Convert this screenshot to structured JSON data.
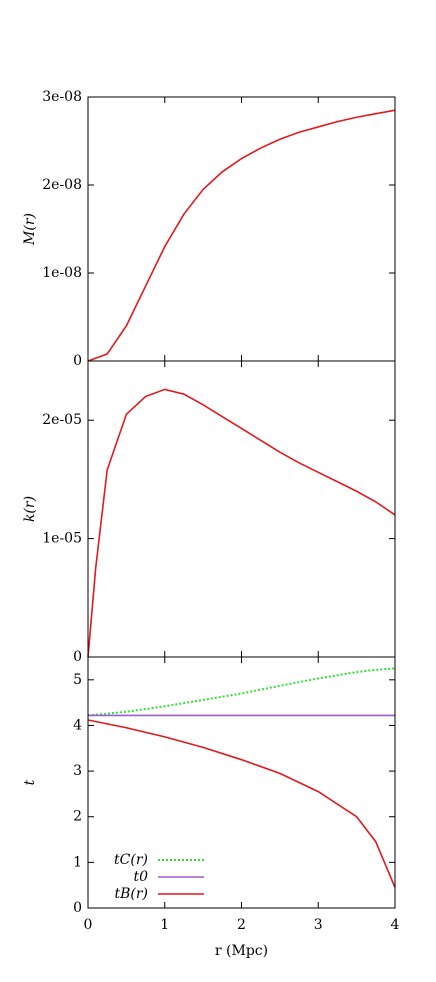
{
  "chart_data": [
    {
      "type": "line",
      "ylabel": "M(r)",
      "x": [
        0,
        0.25,
        0.5,
        0.75,
        1,
        1.25,
        1.5,
        1.75,
        2,
        2.25,
        2.5,
        2.75,
        3,
        3.25,
        3.5,
        3.75,
        4
      ],
      "values": [
        0,
        8e-10,
        4e-09,
        8.5e-09,
        1.3e-08,
        1.67e-08,
        1.95e-08,
        2.15e-08,
        2.3e-08,
        2.42e-08,
        2.52e-08,
        2.6e-08,
        2.66e-08,
        2.72e-08,
        2.77e-08,
        2.81e-08,
        2.85e-08
      ],
      "color": "#e3191c",
      "xlim": [
        0,
        4
      ],
      "ylim": [
        0,
        3e-08
      ],
      "yticks": [
        0,
        {
          "value": 1e-08,
          "label": "1e-08"
        },
        {
          "value": 2e-08,
          "label": "2e-08"
        },
        {
          "value": 3e-08,
          "label": "3e-08"
        }
      ]
    },
    {
      "type": "line",
      "ylabel": "k(r)",
      "x": [
        0,
        0.1,
        0.25,
        0.5,
        0.75,
        1,
        1.25,
        1.5,
        1.75,
        2,
        2.25,
        2.5,
        2.75,
        3,
        3.25,
        3.5,
        3.75,
        4
      ],
      "values": [
        0,
        7.5e-06,
        1.58e-05,
        2.05e-05,
        2.2e-05,
        2.26e-05,
        2.22e-05,
        2.13e-05,
        2.03e-05,
        1.93e-05,
        1.83e-05,
        1.73e-05,
        1.64e-05,
        1.56e-05,
        1.48e-05,
        1.4e-05,
        1.31e-05,
        1.2e-05
      ],
      "color": "#e3191c",
      "xlim": [
        0,
        4
      ],
      "ylim": [
        0,
        2.5e-05
      ],
      "yticks": [
        0,
        {
          "value": 1e-05,
          "label": "1e-05"
        },
        {
          "value": 2e-05,
          "label": "2e-05"
        }
      ]
    },
    {
      "type": "line",
      "ylabel": "t",
      "xlabel": "r (Mpc)",
      "x": [
        0,
        0.5,
        1,
        1.5,
        2,
        2.5,
        3,
        3.5,
        3.75,
        4
      ],
      "series": [
        {
          "name": "tC(r)",
          "color": "#33dd33",
          "style": "dotted",
          "values": [
            4.22,
            4.3,
            4.42,
            4.56,
            4.7,
            4.87,
            5.03,
            5.17,
            5.22,
            5.25
          ]
        },
        {
          "name": "t0",
          "color": "#9a5ed0",
          "style": "solid",
          "values": [
            4.22,
            4.22,
            4.22,
            4.22,
            4.22,
            4.22,
            4.22,
            4.22,
            4.22,
            4.22
          ]
        },
        {
          "name": "tB(r)",
          "color": "#e3191c",
          "style": "solid",
          "values": [
            4.12,
            3.95,
            3.75,
            3.52,
            3.25,
            2.95,
            2.55,
            2.0,
            1.45,
            0.45
          ]
        }
      ],
      "xlim": [
        0,
        4
      ],
      "ylim": [
        0,
        5.5
      ],
      "xticks": [
        0,
        1,
        2,
        3,
        4
      ],
      "yticks": [
        0,
        1,
        2,
        3,
        4,
        5
      ],
      "legend": "bottom-left"
    }
  ]
}
